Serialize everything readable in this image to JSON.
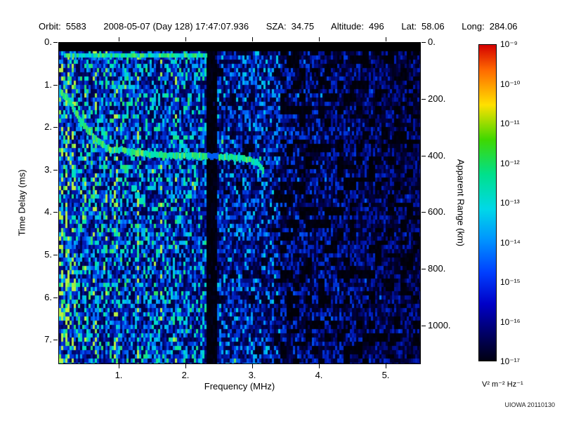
{
  "header": {
    "orbit_label": "Orbit:",
    "orbit_value": "5583",
    "datetime": "2008-05-07 (Day 128) 17:47:07.936",
    "sza_label": "SZA:",
    "sza_value": "34.75",
    "altitude_label": "Altitude:",
    "altitude_value": "496",
    "lat_label": "Lat:",
    "lat_value": "58.06",
    "long_label": "Long:",
    "long_value": "284.06"
  },
  "watermark": "UIOWA 20110130",
  "chart_data": {
    "type": "heatmap",
    "description": "Radar sounder ionogram: echo spectral density vs frequency and time delay; cyan-green ionospheric echo trace descending to ~2.7 ms and cutting off near 3.1 MHz",
    "xlabel": "Frequency (MHz)",
    "ylabel_left": "Time Delay (ms)",
    "ylabel_right": "Apparent Range (km)",
    "xlim": [
      0.1,
      5.5
    ],
    "ylim_ms": [
      0.0,
      7.54
    ],
    "range_km_per_ms": 150,
    "x_ticks": [
      {
        "v": 1,
        "label": "1."
      },
      {
        "v": 2,
        "label": "2."
      },
      {
        "v": 3,
        "label": "3."
      },
      {
        "v": 4,
        "label": "4."
      },
      {
        "v": 5,
        "label": "5."
      }
    ],
    "y_ticks_left": [
      {
        "v": 0,
        "label": "0."
      },
      {
        "v": 1,
        "label": "1."
      },
      {
        "v": 2,
        "label": "2."
      },
      {
        "v": 3,
        "label": "3."
      },
      {
        "v": 4,
        "label": "4."
      },
      {
        "v": 5,
        "label": "5."
      },
      {
        "v": 6,
        "label": "6."
      },
      {
        "v": 7,
        "label": "7."
      }
    ],
    "y_ticks_right": [
      {
        "v": 0,
        "label": "0."
      },
      {
        "v": 200,
        "label": "200."
      },
      {
        "v": 400,
        "label": "400."
      },
      {
        "v": 600,
        "label": "600."
      },
      {
        "v": 800,
        "label": "800."
      },
      {
        "v": 1000,
        "label": "1000."
      }
    ],
    "colorbar": {
      "units": "V² m⁻² Hz⁻¹",
      "tick_labels": [
        "10⁻⁹",
        "10⁻¹⁰",
        "10⁻¹¹",
        "10⁻¹²",
        "10⁻¹³",
        "10⁻¹⁴",
        "10⁻¹⁵",
        "10⁻¹⁶",
        "10⁻¹⁷"
      ],
      "gradient": [
        [
          0,
          "#d40000"
        ],
        [
          0.08,
          "#ff6a00"
        ],
        [
          0.19,
          "#ffe000"
        ],
        [
          0.3,
          "#3fd800"
        ],
        [
          0.41,
          "#00e08c"
        ],
        [
          0.52,
          "#00d8e8"
        ],
        [
          0.62,
          "#0092ff"
        ],
        [
          0.72,
          "#0040ff"
        ],
        [
          0.82,
          "#0000c8"
        ],
        [
          0.92,
          "#000060"
        ],
        [
          1,
          "#000012"
        ]
      ]
    },
    "colormap": [
      [
        0,
        "#000002"
      ],
      [
        0.18,
        "#00004a"
      ],
      [
        0.35,
        "#0018b4"
      ],
      [
        0.5,
        "#0043e8"
      ],
      [
        0.62,
        "#0080ff"
      ],
      [
        0.72,
        "#00c4f0"
      ],
      [
        0.82,
        "#00e8b0"
      ],
      [
        0.9,
        "#28e060"
      ],
      [
        1,
        "#b8f040"
      ]
    ],
    "echo_trace": [
      [
        0.11,
        1.15
      ],
      [
        0.2,
        1.3
      ],
      [
        0.3,
        1.55
      ],
      [
        0.42,
        1.85
      ],
      [
        0.55,
        2.1
      ],
      [
        0.68,
        2.32
      ],
      [
        0.8,
        2.45
      ],
      [
        0.9,
        2.53
      ],
      [
        1.0,
        2.5
      ],
      [
        1.15,
        2.57
      ],
      [
        1.45,
        2.62
      ],
      [
        1.9,
        2.65
      ],
      [
        2.3,
        2.66
      ],
      [
        2.6,
        2.68
      ],
      [
        2.85,
        2.72
      ],
      [
        3.05,
        2.8
      ],
      [
        3.15,
        3.0
      ]
    ],
    "echo_blobs": [
      [
        1.27,
        3.58
      ],
      [
        1.33,
        3.72
      ],
      [
        1.21,
        3.42
      ]
    ],
    "plasma_lines": [
      [
        0.13,
        0.02,
        0.3
      ],
      [
        0.22,
        0.02,
        0.22
      ],
      [
        0.32,
        0.03,
        0.16
      ],
      [
        0.5,
        0.02,
        0.12
      ],
      [
        0.63,
        0.02,
        0.1
      ],
      [
        0.8,
        0.02,
        0.1
      ],
      [
        0.95,
        0.025,
        0.16
      ],
      [
        1.28,
        0.02,
        0.26
      ],
      [
        1.45,
        0.015,
        0.1
      ],
      [
        1.62,
        0.02,
        0.12
      ],
      [
        1.85,
        0.015,
        0.08
      ]
    ],
    "surface_echo": {
      "f_min_mhz": 0.18,
      "f_max_mhz": 2.3,
      "t_ms": 0.3
    },
    "noise_gap_mhz": [
      2.31,
      2.47
    ],
    "black_band_top_ms": 0.2
  }
}
